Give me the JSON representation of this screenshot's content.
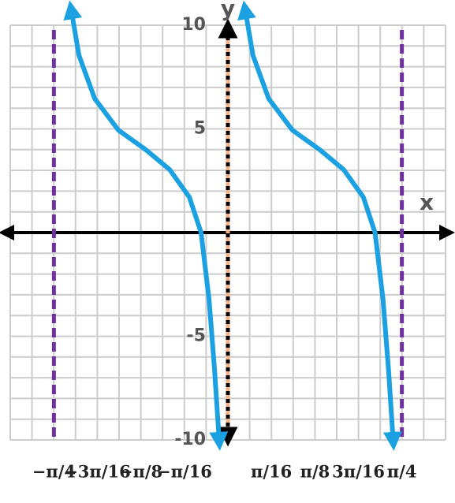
{
  "chart_data": {
    "type": "line",
    "x_label": "x",
    "y_label": "y",
    "xlim": [
      -0.982,
      0.982
    ],
    "ylim": [
      -10,
      10
    ],
    "xgrid_step": 0.0982,
    "ygrid_step": 1,
    "grid": true,
    "xticks": [
      {
        "value": -0.785,
        "label": "−π/4"
      },
      {
        "value": -0.589,
        "label": "−3π/16"
      },
      {
        "value": -0.393,
        "label": "−π/8"
      },
      {
        "value": -0.196,
        "label": "−π/16"
      },
      {
        "value": 0.196,
        "label": "π/16"
      },
      {
        "value": 0.393,
        "label": "π/8"
      },
      {
        "value": 0.589,
        "label": "3π/16"
      },
      {
        "value": 0.785,
        "label": "π/4"
      }
    ],
    "yticks": [
      -10,
      -5,
      5,
      10
    ],
    "asymptotes": [
      {
        "x": -0.785,
        "color": "#7030a0"
      },
      {
        "x": 0.785,
        "color": "#7030a0"
      }
    ],
    "series": [
      {
        "color": "#1ba1e2",
        "x": [
          -0.707,
          -0.672,
          -0.601,
          -0.494,
          -0.37,
          -0.263,
          -0.174,
          -0.121,
          -0.085,
          -0.06,
          -0.039
        ],
        "values": [
          10.75,
          8.55,
          6.46,
          4.94,
          3.99,
          3.04,
          1.71,
          0,
          -3.23,
          -6.65,
          -10.07
        ]
      },
      {
        "color": "#1ba1e2",
        "x": [
          0.078,
          0.113,
          0.184,
          0.291,
          0.415,
          0.522,
          0.611,
          0.664,
          0.7,
          0.725,
          0.746
        ],
        "values": [
          10.75,
          8.55,
          6.46,
          4.94,
          3.99,
          3.04,
          1.71,
          0,
          -3.23,
          -6.65,
          -10.07
        ]
      }
    ]
  }
}
